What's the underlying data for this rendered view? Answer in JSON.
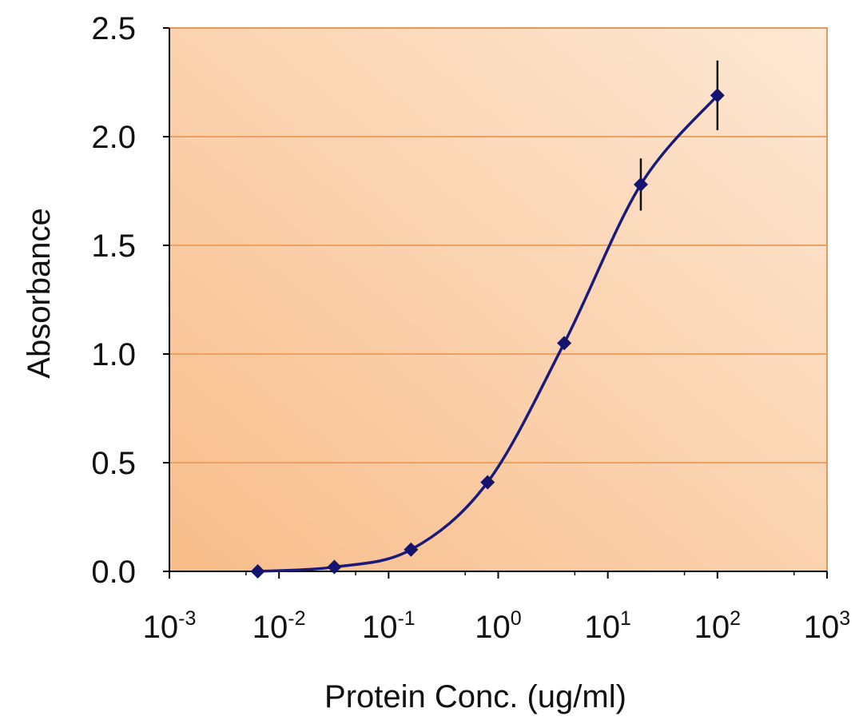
{
  "chart_data": {
    "type": "line",
    "title": "",
    "xlabel": "Protein Conc. (ug/ml)",
    "ylabel": "Absorbance",
    "x_scale": "log10",
    "xlim": [
      0.001,
      1000
    ],
    "ylim": [
      0,
      2.5
    ],
    "y_ticks": [
      0.0,
      0.5,
      1.0,
      1.5,
      2.0,
      2.5
    ],
    "y_tick_labels": [
      "0.0",
      "0.5",
      "1.0",
      "1.5",
      "2.0",
      "2.5"
    ],
    "x_ticks": [
      {
        "value": 0.001,
        "base": "10",
        "exp": "-3"
      },
      {
        "value": 0.01,
        "base": "10",
        "exp": "-2"
      },
      {
        "value": 0.1,
        "base": "10",
        "exp": "-1"
      },
      {
        "value": 1,
        "base": "10",
        "exp": "0"
      },
      {
        "value": 10,
        "base": "10",
        "exp": "1"
      },
      {
        "value": 100,
        "base": "10",
        "exp": "2"
      },
      {
        "value": 1000,
        "base": "10",
        "exp": "3"
      }
    ],
    "grid": "horizontal",
    "series": [
      {
        "name": "Absorbance",
        "color": "#1a1a7a",
        "points": [
          {
            "x": 0.0064,
            "y": 0.0,
            "err": 0
          },
          {
            "x": 0.032,
            "y": 0.02,
            "err": 0
          },
          {
            "x": 0.16,
            "y": 0.1,
            "err": 0
          },
          {
            "x": 0.8,
            "y": 0.41,
            "err": 0
          },
          {
            "x": 4.0,
            "y": 1.05,
            "err": 0
          },
          {
            "x": 20,
            "y": 1.78,
            "err": 0.12
          },
          {
            "x": 100,
            "y": 2.19,
            "err": 0.16
          }
        ]
      }
    ],
    "colors": {
      "plot_bg_light": "#fde8d4",
      "plot_bg_dark": "#f8bd8a",
      "plot_border": "#e8975a",
      "gridline": "#f0a060",
      "axis": "#000000",
      "marker": "#141470",
      "line": "#1a1a7a"
    }
  }
}
